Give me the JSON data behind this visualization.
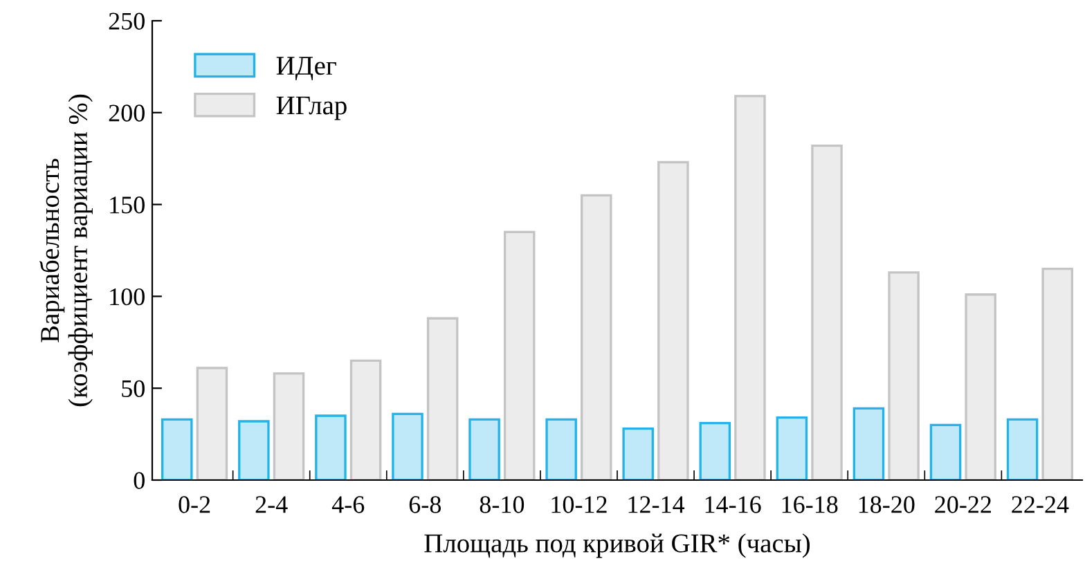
{
  "chart_data": {
    "type": "bar",
    "xlabel": "Площадь под кривой GIR* (часы)",
    "ylabel": "Вариабельность\n(коэффициент вариации %)",
    "categories": [
      "0-2",
      "2-4",
      "4-6",
      "6-8",
      "8-10",
      "10-12",
      "12-14",
      "14-16",
      "16-18",
      "18-20",
      "20-22",
      "22-24"
    ],
    "series": [
      {
        "name": "ИДег",
        "color": "#bfe9f9",
        "values": [
          33,
          32,
          35,
          36,
          33,
          33,
          28,
          31,
          34,
          39,
          30,
          33
        ]
      },
      {
        "name": "ИГлар",
        "color": "#ececec",
        "values": [
          61,
          58,
          65,
          88,
          135,
          155,
          173,
          209,
          182,
          113,
          101,
          115
        ]
      }
    ],
    "ylim": [
      0,
      250
    ],
    "yticks": [
      0,
      50,
      100,
      150,
      200,
      250
    ],
    "grid": false,
    "legend": "top left"
  }
}
